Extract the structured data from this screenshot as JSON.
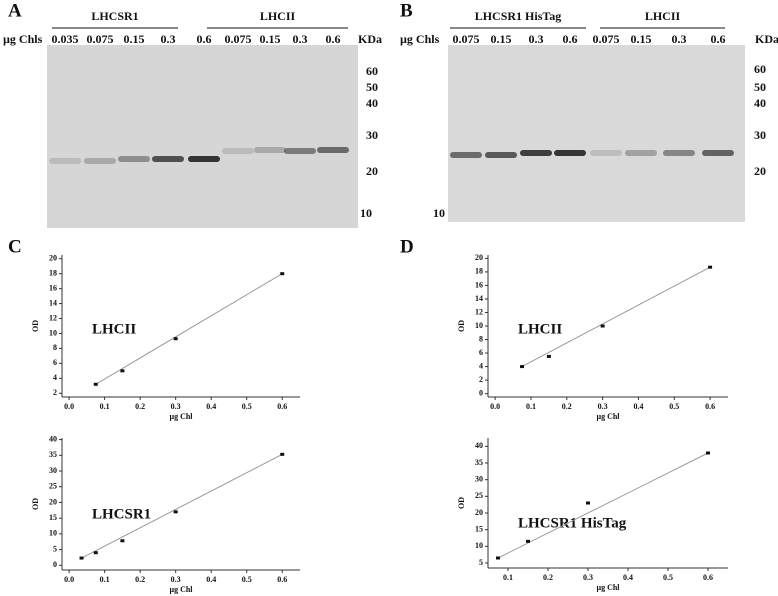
{
  "panel_labels": [
    "A",
    "B",
    "C",
    "D"
  ],
  "gels": [
    {
      "lane_header": "µg Chls",
      "mw_header": "KDa",
      "groups": [
        "LHCSR1",
        "LHCII"
      ],
      "lanes": [
        "0.035",
        "0.075",
        "0.15",
        "0.3",
        "0.6",
        "0.075",
        "0.15",
        "0.3",
        "0.6"
      ],
      "mw_markers": [
        "60",
        "50",
        "40",
        "30",
        "20",
        "10"
      ]
    },
    {
      "lane_header": "µg Chls",
      "mw_header": "KDa",
      "groups": [
        "LHCSR1 HisTag",
        "LHCII"
      ],
      "lanes": [
        "0.075",
        "0.15",
        "0.3",
        "0.6",
        "0.075",
        "0.15",
        "0.3",
        "0.6"
      ],
      "mw_markers": [
        "60",
        "50",
        "40",
        "30",
        "20",
        "10"
      ]
    }
  ],
  "chart_data": [
    {
      "type": "scatter",
      "title": "LHCII",
      "xlabel": "µg Chl",
      "ylabel": "OD",
      "color": "#111111",
      "x": [
        0.075,
        0.15,
        0.3,
        0.6
      ],
      "y": [
        3.2,
        5,
        9.3,
        18
      ],
      "xlim": [
        -0.02,
        0.65
      ],
      "ylim": [
        1.5,
        20.5
      ],
      "xticks": [
        {
          "value": 0,
          "label": "0.0"
        },
        0.1,
        0.2,
        0.3,
        0.4,
        0.5,
        0.6
      ],
      "yticks": [
        2,
        4,
        6,
        8,
        10,
        12,
        14,
        16,
        18,
        20
      ]
    },
    {
      "type": "scatter",
      "title": "LHCSR1",
      "xlabel": "µg Chl",
      "ylabel": "OD",
      "color": "#111111",
      "x": [
        0.035,
        0.075,
        0.15,
        0.3,
        0.6
      ],
      "y": [
        2.3,
        4,
        7.8,
        17,
        35.3
      ],
      "xlim": [
        -0.02,
        0.65
      ],
      "ylim": [
        -1.5,
        40.5
      ],
      "xticks": [
        {
          "value": 0,
          "label": "0.0"
        },
        0.1,
        0.2,
        0.3,
        0.4,
        0.5,
        0.6
      ],
      "yticks": [
        0,
        5,
        10,
        15,
        20,
        25,
        30,
        35,
        40
      ]
    },
    {
      "type": "scatter",
      "title": "LHCII",
      "xlabel": "µg Chl",
      "ylabel": "OD",
      "color": "#111111",
      "x": [
        0.075,
        0.15,
        0.3,
        0.6
      ],
      "y": [
        4,
        5.5,
        10,
        18.7
      ],
      "xlim": [
        -0.02,
        0.65
      ],
      "ylim": [
        -0.5,
        20.5
      ],
      "xticks": [
        {
          "value": 0,
          "label": "0.0"
        },
        0.1,
        0.2,
        0.3,
        0.4,
        0.5,
        0.6
      ],
      "yticks": [
        0,
        2,
        4,
        6,
        8,
        10,
        12,
        14,
        16,
        18,
        20
      ]
    },
    {
      "type": "scatter",
      "title": "LHCSR1 HisTag",
      "xlabel": "µg Chl",
      "ylabel": "OD",
      "color": "#111111",
      "x": [
        0.075,
        0.15,
        0.3,
        0.6
      ],
      "y": [
        6.5,
        11.5,
        23,
        38
      ],
      "xlim": [
        0.05,
        0.65
      ],
      "ylim": [
        3.5,
        42.5
      ],
      "xticks": [
        0.1,
        0.2,
        0.3,
        0.4,
        0.5,
        0.6
      ],
      "yticks": [
        5,
        10,
        15,
        20,
        25,
        30,
        35,
        40
      ]
    }
  ]
}
